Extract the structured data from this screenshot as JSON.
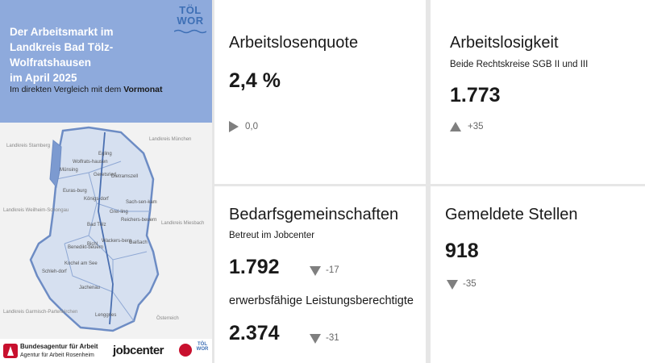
{
  "header": {
    "title_line1": "Der Arbeitsmarkt im",
    "title_line2": "Landkreis Bad Tölz-Wolfratshausen",
    "title_line3": "im April 2025",
    "subtitle_prefix": "Im direkten Vergleich mit dem ",
    "subtitle_bold": "Vormonat",
    "logo_line1": "TÖL",
    "logo_line2": "WOR"
  },
  "map": {
    "places": {
      "starnberg": "Landkreis Starnberg",
      "muenchen": "Landkreis München",
      "weilheim": "Landkreis Weilheim-Schongau",
      "miesbach": "Landkreis Miesbach",
      "garmisch": "Landkreis Garmisch-Partenkirchen",
      "oesterreich": "Österreich",
      "egling": "Egling",
      "muensing": "Münsing",
      "wolfratshausen": "Wolfrats-hausen",
      "geretsried": "Geretsried",
      "eurasburg": "Euras-burg",
      "dietramszell": "Dietramszell",
      "koenigsdorf": "Königs-dorf",
      "bad_toelz": "Bad Tölz",
      "sachsenkam": "Sach-sen-kam",
      "reichersbeuern": "Reichers-beuern",
      "greiling": "Grei-ling",
      "bichl": "Bichl",
      "wackersberg": "Wackers-berg",
      "gaissach": "Gaißach",
      "benediktbeuern": "Benedikt-beuern",
      "kochel": "Kochel am See",
      "schlehdorf": "Schleh-dorf",
      "jachenau": "Jachenau",
      "lenggries": "Lenggries"
    }
  },
  "footer": {
    "ba_name": "Bundesagentur für Arbeit",
    "ba_sub": "Agentur für Arbeit Rosenheim",
    "jobcenter": "jobcenter",
    "jc_tolz_line1": "TÖL",
    "jc_tolz_line2": "WOR"
  },
  "tiles": {
    "quote": {
      "title": "Arbeitslosenquote",
      "value": "2,4 %",
      "change": "0,0",
      "indicator": "right-triangle"
    },
    "unemployment": {
      "title": "Arbeitslosigkeit",
      "subtitle": "Beide Rechtskreise SGB II und III",
      "value": "1.773",
      "change": "+35",
      "indicator": "up-triangle"
    },
    "communities": {
      "title": "Bedarfsgemeinschaften",
      "subtitle": "Betreut im Jobcenter",
      "value": "1.792",
      "change": "-17",
      "indicator": "down-triangle",
      "subtitle2": "erwerbsfähige Leistungsberechtigte",
      "value2": "2.374",
      "change2": "-31",
      "indicator2": "down-triangle"
    },
    "jobs": {
      "title": "Gemeldete Stellen",
      "value": "918",
      "change": "-35",
      "indicator": "down-triangle"
    }
  },
  "colors": {
    "header_blue": "#8eaadc",
    "map_fill": "#d6e0f0",
    "map_border": "#6d8cc4",
    "indicator_gray": "#7f7f7f",
    "brand_red": "#c8102e"
  }
}
